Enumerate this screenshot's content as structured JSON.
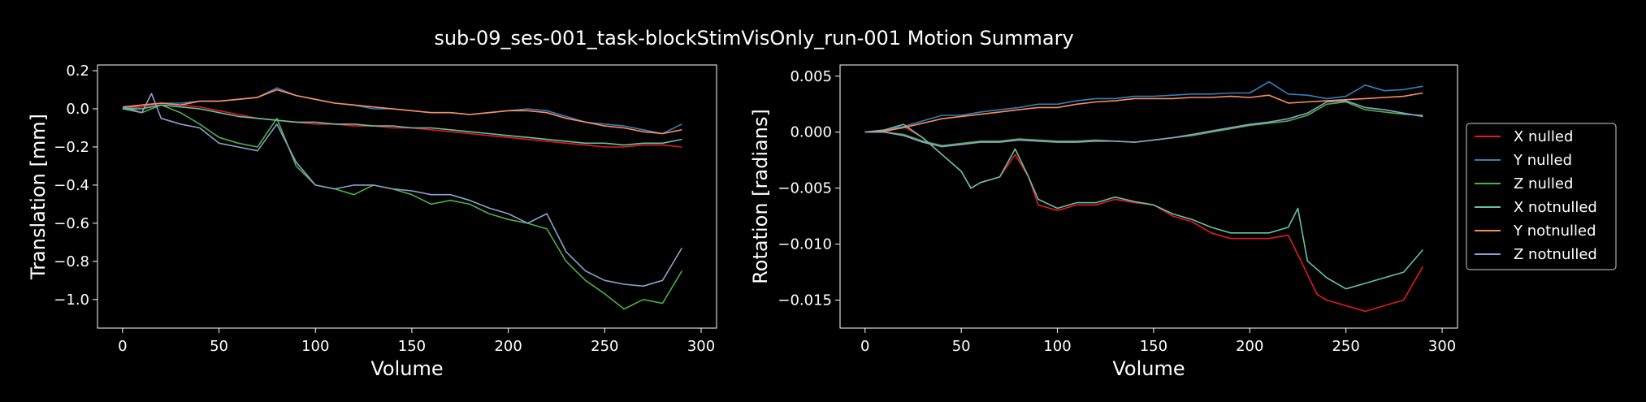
{
  "figure": {
    "title": "sub-09_ses-001_task-blockStimVisOnly_run-001 Motion Summary"
  },
  "colors": {
    "background": "#000000",
    "axes": "#ffffff",
    "X nulled": "#e41a1c",
    "Y nulled": "#377eb8",
    "Z nulled": "#4daf4a",
    "X notnulled": "#66c2a5",
    "Y notnulled": "#fc8d62",
    "Z notnulled": "#8da0cb"
  },
  "legend": {
    "placement": "right-outside",
    "entries": [
      "X nulled",
      "Y nulled",
      "Z nulled",
      "X notnulled",
      "Y notnulled",
      "Z notnulled"
    ]
  },
  "chart_data": [
    {
      "type": "line",
      "xlabel": "Volume",
      "ylabel": "Translation [mm]",
      "xlim": [
        -13,
        308
      ],
      "ylim": [
        -1.15,
        0.23
      ],
      "xticks": [
        "0",
        "50",
        "100",
        "150",
        "200",
        "250",
        "300"
      ],
      "yticks": [
        "0.2",
        "0.0",
        "−0.2",
        "−0.4",
        "−0.6",
        "−0.8",
        "−1.0"
      ],
      "grid": false,
      "series": [
        {
          "name": "X nulled",
          "color": "#e41a1c",
          "x": [
            0,
            10,
            20,
            30,
            40,
            50,
            60,
            70,
            80,
            90,
            100,
            110,
            120,
            130,
            140,
            150,
            160,
            170,
            180,
            190,
            200,
            210,
            220,
            230,
            240,
            250,
            260,
            270,
            280,
            290
          ],
          "y": [
            0.0,
            0.01,
            0.03,
            0.02,
            0.01,
            -0.01,
            -0.03,
            -0.05,
            -0.06,
            -0.07,
            -0.08,
            -0.08,
            -0.09,
            -0.09,
            -0.1,
            -0.1,
            -0.11,
            -0.12,
            -0.13,
            -0.14,
            -0.15,
            -0.16,
            -0.17,
            -0.18,
            -0.19,
            -0.2,
            -0.2,
            -0.19,
            -0.19,
            -0.2
          ]
        },
        {
          "name": "Y nulled",
          "color": "#377eb8",
          "x": [
            0,
            10,
            20,
            30,
            40,
            50,
            60,
            70,
            80,
            90,
            100,
            110,
            120,
            130,
            140,
            150,
            160,
            170,
            180,
            190,
            200,
            210,
            220,
            230,
            240,
            250,
            260,
            270,
            280,
            290
          ],
          "y": [
            0.0,
            0.02,
            0.03,
            0.03,
            0.04,
            0.04,
            0.05,
            0.06,
            0.11,
            0.07,
            0.05,
            0.03,
            0.02,
            0.0,
            0.0,
            -0.01,
            -0.02,
            -0.02,
            -0.03,
            -0.02,
            -0.01,
            0.0,
            -0.01,
            -0.04,
            -0.07,
            -0.08,
            -0.09,
            -0.11,
            -0.13,
            -0.08
          ]
        },
        {
          "name": "Z nulled",
          "color": "#4daf4a",
          "x": [
            0,
            10,
            20,
            30,
            40,
            50,
            60,
            70,
            80,
            90,
            100,
            110,
            120,
            130,
            140,
            150,
            160,
            170,
            180,
            190,
            200,
            210,
            220,
            230,
            240,
            250,
            260,
            270,
            280,
            290
          ],
          "y": [
            0.0,
            -0.02,
            0.02,
            -0.02,
            -0.08,
            -0.15,
            -0.18,
            -0.2,
            -0.05,
            -0.3,
            -0.4,
            -0.42,
            -0.45,
            -0.4,
            -0.42,
            -0.45,
            -0.5,
            -0.48,
            -0.5,
            -0.55,
            -0.58,
            -0.6,
            -0.63,
            -0.8,
            -0.9,
            -0.97,
            -1.05,
            -1.0,
            -1.02,
            -0.85
          ]
        },
        {
          "name": "X notnulled",
          "color": "#66c2a5",
          "x": [
            0,
            10,
            20,
            30,
            40,
            50,
            60,
            70,
            80,
            90,
            100,
            110,
            120,
            130,
            140,
            150,
            160,
            170,
            180,
            190,
            200,
            210,
            220,
            230,
            240,
            250,
            260,
            270,
            280,
            290
          ],
          "y": [
            0.0,
            0.0,
            0.02,
            0.01,
            0.0,
            -0.02,
            -0.04,
            -0.05,
            -0.06,
            -0.07,
            -0.07,
            -0.08,
            -0.08,
            -0.09,
            -0.09,
            -0.1,
            -0.1,
            -0.11,
            -0.12,
            -0.13,
            -0.14,
            -0.15,
            -0.16,
            -0.17,
            -0.18,
            -0.18,
            -0.19,
            -0.18,
            -0.18,
            -0.16
          ]
        },
        {
          "name": "Y notnulled",
          "color": "#fc8d62",
          "x": [
            0,
            10,
            20,
            30,
            40,
            50,
            60,
            70,
            80,
            90,
            100,
            110,
            120,
            130,
            140,
            150,
            160,
            170,
            180,
            190,
            200,
            210,
            220,
            230,
            240,
            250,
            260,
            270,
            280,
            290
          ],
          "y": [
            0.01,
            0.02,
            0.03,
            0.02,
            0.04,
            0.04,
            0.05,
            0.06,
            0.1,
            0.07,
            0.05,
            0.03,
            0.02,
            0.01,
            0.0,
            -0.01,
            -0.02,
            -0.02,
            -0.03,
            -0.02,
            -0.01,
            -0.01,
            -0.02,
            -0.05,
            -0.07,
            -0.09,
            -0.1,
            -0.12,
            -0.13,
            -0.11
          ]
        },
        {
          "name": "Z notnulled",
          "color": "#8da0cb",
          "x": [
            0,
            10,
            15,
            20,
            30,
            40,
            50,
            60,
            70,
            80,
            90,
            100,
            110,
            120,
            130,
            140,
            150,
            160,
            170,
            180,
            190,
            200,
            210,
            220,
            230,
            240,
            250,
            260,
            270,
            280,
            290
          ],
          "y": [
            0.01,
            -0.02,
            0.08,
            -0.05,
            -0.08,
            -0.1,
            -0.18,
            -0.2,
            -0.22,
            -0.08,
            -0.28,
            -0.4,
            -0.42,
            -0.4,
            -0.4,
            -0.42,
            -0.43,
            -0.45,
            -0.45,
            -0.48,
            -0.52,
            -0.55,
            -0.6,
            -0.55,
            -0.75,
            -0.85,
            -0.9,
            -0.92,
            -0.93,
            -0.9,
            -0.73
          ]
        }
      ]
    },
    {
      "type": "line",
      "xlabel": "Volume",
      "ylabel": "Rotation [radians]",
      "xlim": [
        -13,
        308
      ],
      "ylim": [
        -0.0175,
        0.006
      ],
      "xticks": [
        "0",
        "50",
        "100",
        "150",
        "200",
        "250",
        "300"
      ],
      "yticks": [
        "0.005",
        "0.000",
        "−0.005",
        "−0.010",
        "−0.015"
      ],
      "grid": false,
      "series": [
        {
          "name": "X nulled",
          "color": "#e41a1c",
          "x": [
            0,
            10,
            20,
            30,
            40,
            50,
            55,
            60,
            70,
            78,
            85,
            90,
            100,
            110,
            120,
            130,
            140,
            150,
            160,
            170,
            180,
            190,
            200,
            210,
            220,
            228,
            235,
            240,
            250,
            260,
            270,
            280,
            290
          ],
          "y": [
            0.0,
            0.0,
            0.0005,
            -0.0005,
            -0.002,
            -0.0035,
            -0.005,
            -0.0045,
            -0.004,
            -0.002,
            -0.004,
            -0.0065,
            -0.007,
            -0.0065,
            -0.0065,
            -0.006,
            -0.0063,
            -0.0065,
            -0.0075,
            -0.008,
            -0.009,
            -0.0095,
            -0.0095,
            -0.0095,
            -0.0092,
            -0.012,
            -0.0145,
            -0.015,
            -0.0155,
            -0.016,
            -0.0155,
            -0.015,
            -0.012
          ]
        },
        {
          "name": "Y nulled",
          "color": "#377eb8",
          "x": [
            0,
            10,
            20,
            30,
            40,
            50,
            60,
            70,
            80,
            90,
            100,
            110,
            120,
            130,
            140,
            150,
            160,
            170,
            180,
            190,
            200,
            210,
            220,
            230,
            240,
            250,
            260,
            270,
            280,
            290
          ],
          "y": [
            0.0,
            0.0002,
            0.0005,
            0.001,
            0.0015,
            0.0015,
            0.0018,
            0.002,
            0.0022,
            0.0025,
            0.0025,
            0.0028,
            0.003,
            0.003,
            0.0032,
            0.0032,
            0.0033,
            0.0034,
            0.0034,
            0.0035,
            0.0035,
            0.0045,
            0.0034,
            0.0033,
            0.003,
            0.0032,
            0.0042,
            0.0037,
            0.0038,
            0.0041
          ]
        },
        {
          "name": "Z nulled",
          "color": "#4daf4a",
          "x": [
            0,
            10,
            20,
            30,
            40,
            50,
            60,
            70,
            80,
            90,
            100,
            110,
            120,
            130,
            140,
            150,
            160,
            170,
            180,
            190,
            200,
            210,
            220,
            230,
            240,
            250,
            260,
            270,
            280,
            290
          ],
          "y": [
            0.0,
            0.0,
            -0.0002,
            -0.0008,
            -0.0012,
            -0.001,
            -0.0008,
            -0.0008,
            -0.0006,
            -0.0007,
            -0.0008,
            -0.0008,
            -0.0007,
            -0.0008,
            -0.0009,
            -0.0007,
            -0.0005,
            -0.0003,
            0.0,
            0.0003,
            0.0006,
            0.0008,
            0.001,
            0.0015,
            0.0025,
            0.0027,
            0.002,
            0.0018,
            0.0016,
            0.0015
          ]
        },
        {
          "name": "X notnulled",
          "color": "#66c2a5",
          "x": [
            0,
            10,
            20,
            30,
            40,
            50,
            55,
            60,
            70,
            78,
            85,
            90,
            100,
            110,
            120,
            130,
            140,
            150,
            160,
            170,
            180,
            190,
            200,
            210,
            220,
            225,
            230,
            240,
            250,
            260,
            270,
            280,
            290
          ],
          "y": [
            0.0,
            0.0002,
            0.0007,
            -0.0005,
            -0.002,
            -0.0035,
            -0.005,
            -0.0045,
            -0.004,
            -0.0015,
            -0.004,
            -0.006,
            -0.0068,
            -0.0063,
            -0.0063,
            -0.0058,
            -0.0062,
            -0.0065,
            -0.0073,
            -0.0078,
            -0.0085,
            -0.009,
            -0.009,
            -0.009,
            -0.0085,
            -0.0068,
            -0.0115,
            -0.013,
            -0.014,
            -0.0135,
            -0.013,
            -0.0125,
            -0.0105
          ]
        },
        {
          "name": "Y notnulled",
          "color": "#fc8d62",
          "x": [
            0,
            10,
            20,
            30,
            40,
            50,
            60,
            70,
            80,
            90,
            100,
            110,
            120,
            130,
            140,
            150,
            160,
            170,
            180,
            190,
            200,
            210,
            220,
            230,
            240,
            250,
            260,
            270,
            280,
            290
          ],
          "y": [
            0.0,
            0.0001,
            0.0004,
            0.0008,
            0.0012,
            0.0014,
            0.0016,
            0.0018,
            0.002,
            0.0022,
            0.0022,
            0.0025,
            0.0027,
            0.0028,
            0.003,
            0.003,
            0.003,
            0.0031,
            0.0031,
            0.0032,
            0.0031,
            0.0033,
            0.0026,
            0.0027,
            0.0028,
            0.0029,
            0.003,
            0.0031,
            0.0032,
            0.0035
          ]
        },
        {
          "name": "Z notnulled",
          "color": "#8da0cb",
          "x": [
            0,
            10,
            20,
            30,
            40,
            50,
            60,
            70,
            80,
            90,
            100,
            110,
            120,
            130,
            140,
            150,
            160,
            170,
            180,
            190,
            200,
            210,
            220,
            230,
            240,
            250,
            260,
            270,
            280,
            290
          ],
          "y": [
            0.0,
            0.0,
            -0.0003,
            -0.0009,
            -0.0013,
            -0.0011,
            -0.0009,
            -0.0009,
            -0.0007,
            -0.0008,
            -0.0009,
            -0.0009,
            -0.0008,
            -0.0008,
            -0.0009,
            -0.0007,
            -0.0005,
            -0.0002,
            0.0001,
            0.0004,
            0.0007,
            0.0009,
            0.0012,
            0.0017,
            0.0027,
            0.0028,
            0.0022,
            0.002,
            0.0017,
            0.0014
          ]
        }
      ]
    }
  ]
}
